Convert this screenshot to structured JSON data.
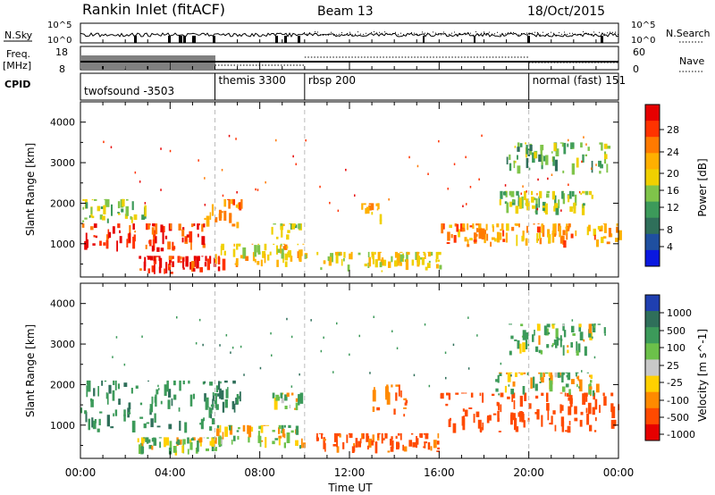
{
  "header": {
    "station": "Rankin Inlet (fitACF)",
    "beam": "Beam 13",
    "date": "18/Oct/2015"
  },
  "top_panels": {
    "nsky_label": "N.Sky",
    "nsky_ticks": [
      "10^5",
      "10^0"
    ],
    "nsearch_label": "N.Search",
    "nsearch_ticks": [
      "10^5",
      "10^0"
    ],
    "freq_label": "Freq.",
    "freq_unit": "[MHz]",
    "freq_ticks": [
      "18",
      "8"
    ],
    "nave_label": "Nave",
    "nave_ticks": [
      "60",
      "0"
    ],
    "cpid_label": "CPID",
    "cpid_segments": [
      {
        "label": "twofsound -3503",
        "start": 0.0,
        "end": 6.0
      },
      {
        "label": "themis 3300",
        "start": 6.0,
        "end": 10.0
      },
      {
        "label": "rbsp 200",
        "start": 10.0,
        "end": 20.0
      },
      {
        "label": "normal (fast) 151",
        "start": 20.0,
        "end": 24.0
      }
    ]
  },
  "xaxis": {
    "label": "Time UT",
    "ticks": [
      "00:00",
      "04:00",
      "08:00",
      "12:00",
      "16:00",
      "20:00",
      "00:00"
    ]
  },
  "power_colorbar": {
    "label": "Power [dB]",
    "ticks": [
      "28",
      "24",
      "20",
      "16",
      "12",
      "8",
      "4"
    ],
    "colors": [
      "#e60000",
      "#ff3300",
      "#ff7a00",
      "#ffb000",
      "#f0d000",
      "#7fc44a",
      "#3c9a5a",
      "#2f6f5a",
      "#1f4fa0",
      "#0a18e0"
    ]
  },
  "velocity_colorbar": {
    "label": "Velocity [m s^-1]",
    "ticks": [
      "1000",
      "500",
      "100",
      "25",
      "-25",
      "-100",
      "-500",
      "-1000"
    ],
    "colors": [
      "#1f3fb0",
      "#2f6f5a",
      "#3c9a5a",
      "#6cc04a",
      "#c8c8c8",
      "#ffd000",
      "#ff8a00",
      "#ff4a00",
      "#e60000"
    ]
  },
  "chart_data": [
    {
      "type": "heatmap",
      "title": "Power",
      "xlabel": "Time UT",
      "ylabel": "Slant Range [km]",
      "xlim": [
        0,
        24
      ],
      "ylim": [
        180,
        4500
      ],
      "yticks": [
        1000,
        2000,
        3000,
        4000
      ],
      "colorbar_label": "Power [dB]",
      "colorbar_range": [
        0,
        30
      ],
      "regions": [
        {
          "t0": 0.0,
          "t1": 5.5,
          "r0": 800,
          "r1": 1500,
          "value": 26
        },
        {
          "t0": 0.0,
          "t1": 3.0,
          "r0": 1500,
          "r1": 2100,
          "value": 14
        },
        {
          "t0": 2.5,
          "t1": 6.5,
          "r0": 250,
          "r1": 700,
          "value": 27
        },
        {
          "t0": 5.5,
          "t1": 7.2,
          "r0": 1300,
          "r1": 2100,
          "value": 22
        },
        {
          "t0": 6.0,
          "t1": 10.0,
          "r0": 400,
          "r1": 1000,
          "value": 18
        },
        {
          "t0": 8.5,
          "t1": 9.8,
          "r0": 1100,
          "r1": 1500,
          "value": 15
        },
        {
          "t0": 10.5,
          "t1": 16.0,
          "r0": 300,
          "r1": 800,
          "value": 17
        },
        {
          "t0": 12.5,
          "t1": 13.5,
          "r0": 1400,
          "r1": 2000,
          "value": 20
        },
        {
          "t0": 16.0,
          "t1": 24.0,
          "r0": 900,
          "r1": 1500,
          "value": 21
        },
        {
          "t0": 18.5,
          "t1": 23.0,
          "r0": 1700,
          "r1": 2300,
          "value": 14
        },
        {
          "t0": 19.0,
          "t1": 23.5,
          "r0": 2700,
          "r1": 3500,
          "value": 12
        }
      ]
    },
    {
      "type": "heatmap",
      "title": "Velocity",
      "xlabel": "Time UT",
      "ylabel": "Slant Range [km]",
      "xlim": [
        0,
        24
      ],
      "ylim": [
        180,
        4500
      ],
      "yticks": [
        1000,
        2000,
        3000,
        4000
      ],
      "colorbar_label": "Velocity [m s^-1]",
      "colorbar_range": [
        -1000,
        1000
      ],
      "regions": [
        {
          "t0": 0.0,
          "t1": 6.0,
          "r0": 800,
          "r1": 2100,
          "value": 250
        },
        {
          "t0": 2.5,
          "t1": 6.5,
          "r0": 250,
          "r1": 700,
          "value": 20
        },
        {
          "t0": 5.5,
          "t1": 7.2,
          "r0": 1300,
          "r1": 2100,
          "value": 300
        },
        {
          "t0": 6.0,
          "t1": 10.0,
          "r0": 400,
          "r1": 1000,
          "value": -20
        },
        {
          "t0": 8.5,
          "t1": 9.8,
          "r0": 1300,
          "r1": 1800,
          "value": 0
        },
        {
          "t0": 10.5,
          "t1": 16.0,
          "r0": 300,
          "r1": 800,
          "value": -400
        },
        {
          "t0": 13.0,
          "t1": 14.5,
          "r0": 1200,
          "r1": 2000,
          "value": -300
        },
        {
          "t0": 16.0,
          "t1": 24.0,
          "r0": 800,
          "r1": 1800,
          "value": -450
        },
        {
          "t0": 18.5,
          "t1": 23.0,
          "r0": 1700,
          "r1": 2300,
          "value": 0
        },
        {
          "t0": 19.0,
          "t1": 23.5,
          "r0": 2700,
          "r1": 3500,
          "value": 80
        }
      ]
    }
  ]
}
